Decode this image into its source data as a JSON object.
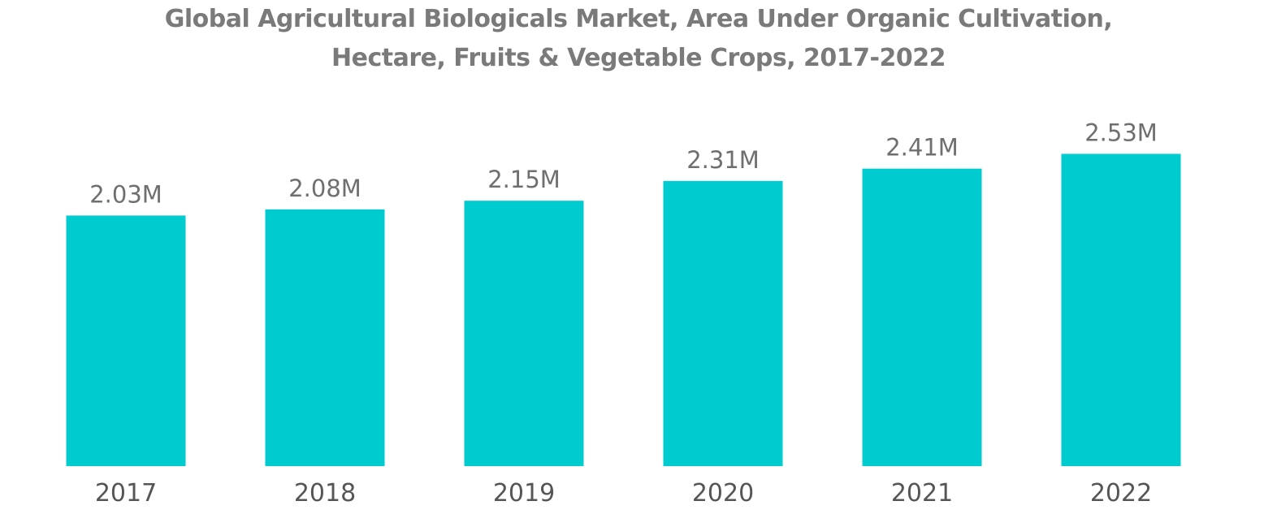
{
  "chart_data": {
    "type": "bar",
    "title_lines": [
      "Global Agricultural Biologicals Market, Area Under Organic Cultivation,",
      "Hectare, Fruits & Vegetable Crops, 2017-2022"
    ],
    "categories": [
      "2017",
      "2018",
      "2019",
      "2020",
      "2021",
      "2022"
    ],
    "values": [
      2.03,
      2.08,
      2.15,
      2.31,
      2.41,
      2.53
    ],
    "value_labels": [
      "2.03M",
      "2.08M",
      "2.15M",
      "2.31M",
      "2.41M",
      "2.53M"
    ],
    "unit": "M",
    "xlabel": "",
    "ylabel": "",
    "grid": false,
    "legend": "none",
    "bar_color": "#00cccf"
  }
}
